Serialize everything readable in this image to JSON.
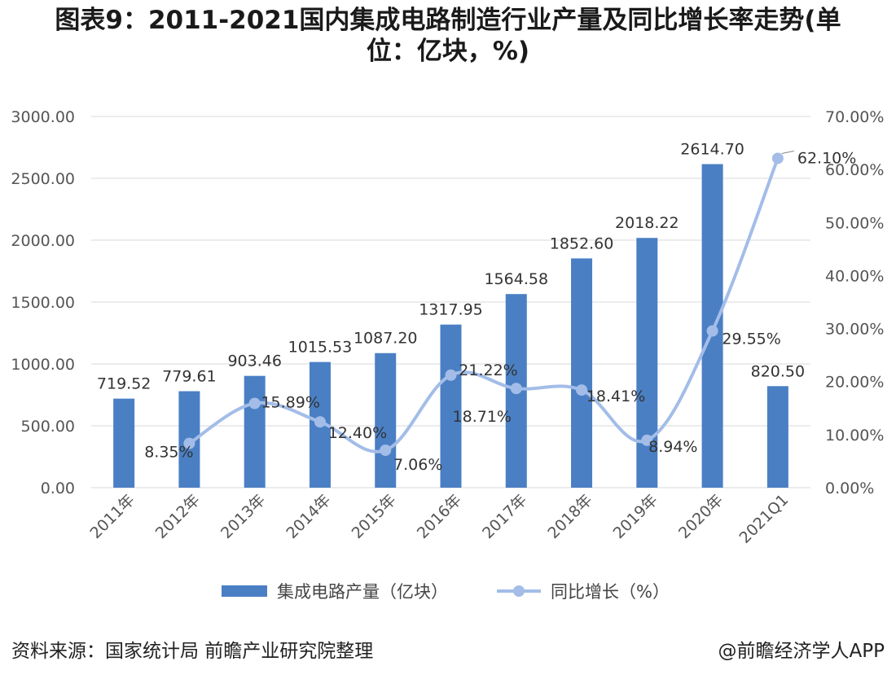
{
  "title": "图表9：2011-2021国内集成电路制造行业产量及同比增长率走势(单位：亿块，%)",
  "source_note": "资料来源：国家统计局 前瞻产业研究院整理",
  "credit": "@前瞻经济学人APP",
  "colors": {
    "bar": "#4a7fc4",
    "line": "#a3bde8",
    "grid": "#d9d9d9"
  },
  "chart_data": {
    "type": "bar",
    "categories": [
      "2011年",
      "2012年",
      "2013年",
      "2014年",
      "2015年",
      "2016年",
      "2017年",
      "2018年",
      "2019年",
      "2020年",
      "2021Q1"
    ],
    "series": [
      {
        "name": "集成电路产量（亿块）",
        "type": "bar",
        "axis": "left",
        "values": [
          719.52,
          779.61,
          903.46,
          1015.53,
          1087.2,
          1317.95,
          1564.58,
          1852.6,
          2018.22,
          2614.7,
          820.5
        ],
        "labels": [
          "719.52",
          "779.61",
          "903.46",
          "1015.53",
          "1087.20",
          "1317.95",
          "1564.58",
          "1852.60",
          "2018.22",
          "2614.70",
          "820.50"
        ]
      },
      {
        "name": "同比增长（%）",
        "type": "line",
        "axis": "right",
        "values": [
          null,
          8.35,
          15.89,
          12.4,
          7.06,
          21.22,
          18.71,
          18.41,
          8.94,
          29.55,
          62.1
        ],
        "labels": [
          "",
          "8.35%",
          "15.89%",
          "12.40%",
          "7.06%",
          "21.22%",
          "18.71%",
          "18.41%",
          "8.94%",
          "29.55%",
          "62.10%"
        ]
      }
    ],
    "y_left": {
      "min": 0,
      "max": 3000,
      "ticks": [
        "0.00",
        "500.00",
        "1000.00",
        "1500.00",
        "2000.00",
        "2500.00",
        "3000.00"
      ]
    },
    "y_right": {
      "min": 0,
      "max": 70,
      "ticks": [
        "0.00%",
        "10.00%",
        "20.00%",
        "30.00%",
        "40.00%",
        "50.00%",
        "60.00%",
        "70.00%"
      ]
    },
    "grid": true,
    "legend_position": "bottom"
  }
}
